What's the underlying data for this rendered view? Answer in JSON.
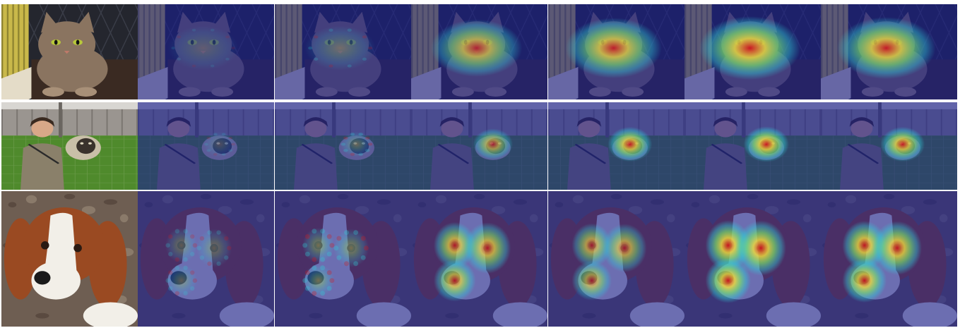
{
  "grid": {
    "rows": [
      {
        "subject": "cat",
        "cells": [
          {
            "kind": "photo"
          },
          {
            "kind": "heatmap",
            "style": "edges",
            "level": 0.25
          },
          {
            "kind": "heatmap",
            "style": "edges",
            "level": 0.4
          },
          {
            "kind": "heatmap",
            "style": "blob",
            "level": 0.75
          },
          {
            "kind": "heatmap",
            "style": "blob",
            "level": 0.85
          },
          {
            "kind": "heatmap",
            "style": "blob",
            "level": 0.95
          },
          {
            "kind": "heatmap",
            "style": "blob",
            "level": 0.9
          }
        ]
      },
      {
        "subject": "person-and-sheep",
        "cells": [
          {
            "kind": "photo"
          },
          {
            "kind": "heatmap",
            "style": "edges",
            "level": 0.3
          },
          {
            "kind": "heatmap",
            "style": "edges",
            "level": 0.5
          },
          {
            "kind": "heatmap",
            "style": "blob",
            "level": 0.7
          },
          {
            "kind": "heatmap",
            "style": "blob",
            "level": 0.9
          },
          {
            "kind": "heatmap",
            "style": "blob",
            "level": 0.95
          },
          {
            "kind": "heatmap",
            "style": "blob",
            "level": 0.9
          }
        ]
      },
      {
        "subject": "basset-puppy",
        "cells": [
          {
            "kind": "photo"
          },
          {
            "kind": "heatmap",
            "style": "edges",
            "level": 0.45
          },
          {
            "kind": "heatmap",
            "style": "edges",
            "level": 0.6
          },
          {
            "kind": "heatmap",
            "style": "blob",
            "level": 0.8
          },
          {
            "kind": "heatmap",
            "style": "blob",
            "level": 0.7
          },
          {
            "kind": "heatmap",
            "style": "blob",
            "level": 0.95
          },
          {
            "kind": "heatmap",
            "style": "blob",
            "level": 0.9
          }
        ]
      }
    ]
  },
  "colors": {
    "jet_low": "#1a1f8f",
    "jet_mid": "#2fd0d8",
    "jet_green": "#7ee86a",
    "jet_high": "#f2e03a",
    "jet_peak": "#d8141a",
    "cat_fur": "#8a7460",
    "wall_dark": "#24262e",
    "grass": "#4f8a2c",
    "fence": "#9a9590",
    "pebbles": "#6e5e52",
    "dog_brown": "#9a4a22",
    "dog_white": "#f2efe8"
  }
}
